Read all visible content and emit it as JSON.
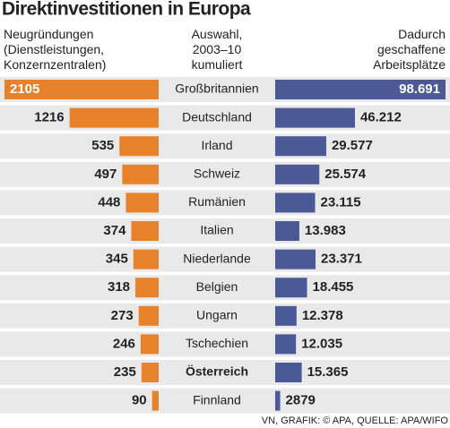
{
  "chart_data": {
    "type": "butterfly-bar",
    "title": "Direktinvestitionen in Europa",
    "categories_label": "Auswahl, 2003–10 kumuliert",
    "categories": [
      "Großbritannien",
      "Deutschland",
      "Irland",
      "Schweiz",
      "Rumänien",
      "Italien",
      "Niederlande",
      "Belgien",
      "Ungarn",
      "Tschechien",
      "Österreich",
      "Finnland"
    ],
    "highlight": [
      10
    ],
    "series": [
      {
        "name": "Neugründungen (Dienstleistungen, Konzernzentralen)",
        "color": "#e8822a",
        "values": [
          2105,
          1216,
          535,
          497,
          448,
          374,
          345,
          318,
          273,
          246,
          235,
          90
        ]
      },
      {
        "name": "Dadurch geschaffene Arbeitsplätze",
        "color": "#4b5a96",
        "values": [
          98691,
          46212,
          29577,
          25574,
          23115,
          13983,
          23371,
          18455,
          12378,
          12035,
          15365,
          2879
        ],
        "value_labels": [
          "98.691",
          "46.212",
          "29.577",
          "25.574",
          "23.115",
          "13.983",
          "23.371",
          "18.455",
          "12.378",
          "12.035",
          "15.365",
          "2879"
        ]
      }
    ],
    "source": "VN, GRAFIK: © APA, QUELLE: APA/WIFO"
  }
}
